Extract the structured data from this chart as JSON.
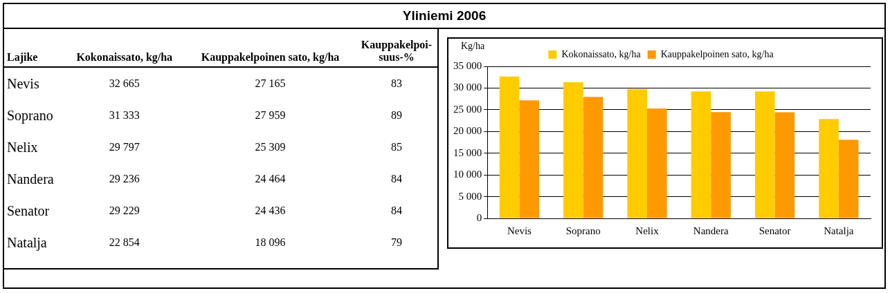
{
  "chart_data": [
    {
      "type": "other",
      "title": "Yliniemi 2006",
      "ylabel": "Lajike",
      "categories": [
        "Nevis",
        "Soprano",
        "Nelix",
        "Nandera",
        "Senator",
        "Natalja"
      ],
      "series": [
        {
          "name": "Kokonaissato, kg/ha",
          "values": [
            32665,
            31333,
            29797,
            29236,
            29229,
            22854
          ],
          "value_labels": [
            "32 665",
            "31 333",
            "29 797",
            "29 236",
            "29 229",
            "22 854"
          ]
        },
        {
          "name": "Kauppakelpoinen sato, kg/ha",
          "values": [
            27165,
            27959,
            25309,
            24464,
            24436,
            18096
          ],
          "value_labels": [
            "27 165",
            "27 959",
            "25 309",
            "24 464",
            "24 436",
            "18 096"
          ]
        },
        {
          "name": "Kauppakelpoi-suus-%",
          "values": [
            83,
            89,
            85,
            84,
            84,
            79
          ],
          "value_labels": [
            "83",
            "89",
            "85",
            "84",
            "84",
            "79"
          ]
        }
      ]
    },
    {
      "type": "bar",
      "ylabel": "Kg/ha",
      "categories": [
        "Nevis",
        "Soprano",
        "Nelix",
        "Nandera",
        "Senator",
        "Natalja"
      ],
      "series": [
        {
          "name": "Kokonaissato, kg/ha",
          "color": "#ffcc00",
          "values": [
            32665,
            31333,
            29797,
            29236,
            29229,
            22854
          ]
        },
        {
          "name": "Kauppakelpoinen sato, kg/ha",
          "color": "#ff9900",
          "values": [
            27165,
            27959,
            25309,
            24464,
            24436,
            18096
          ]
        }
      ],
      "ylim": [
        0,
        35000
      ],
      "yticks": [
        {
          "value": 0,
          "label": "0"
        },
        {
          "value": 5000,
          "label": "5 000"
        },
        {
          "value": 10000,
          "label": "10 000"
        },
        {
          "value": 15000,
          "label": "15 000"
        },
        {
          "value": 20000,
          "label": "20 000"
        },
        {
          "value": 25000,
          "label": "25 000"
        },
        {
          "value": 30000,
          "label": "30 000"
        },
        {
          "value": 35000,
          "label": "35 000"
        }
      ],
      "grid": "y",
      "legend": "top"
    }
  ]
}
